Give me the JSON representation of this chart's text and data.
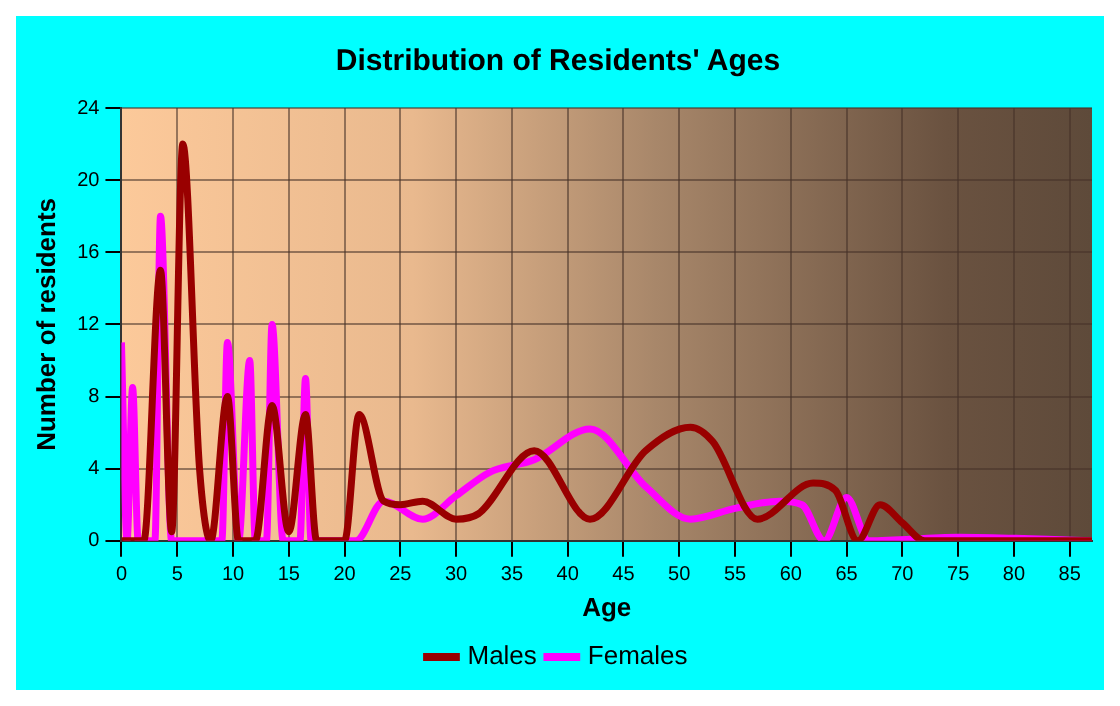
{
  "chart_data": {
    "type": "line",
    "title": "Distribution of Residents' Ages",
    "xlabel": "Age",
    "ylabel": "Number of residents",
    "xlim": [
      0,
      87
    ],
    "xticks": [
      0,
      5,
      10,
      15,
      20,
      25,
      30,
      35,
      40,
      45,
      50,
      55,
      60,
      65,
      70,
      75,
      80,
      85
    ],
    "ylim": [
      0,
      24
    ],
    "yticks": [
      0,
      4,
      8,
      12,
      16,
      20,
      24
    ],
    "grid": true,
    "legend": "bottom",
    "marker": "none",
    "series": [
      {
        "name": "Males",
        "color": "#990000",
        "x": [
          0,
          2,
          3.5,
          4.5,
          5.5,
          7,
          8,
          9.5,
          10.5,
          12,
          13.5,
          15,
          16.5,
          17.5,
          20,
          21.3,
          23.5,
          25,
          27,
          30,
          32,
          37,
          42,
          47,
          51,
          53,
          57,
          62,
          64,
          66,
          68,
          70,
          72,
          87
        ],
        "values": [
          0,
          0,
          15,
          0.5,
          22,
          4,
          0,
          8,
          0,
          0,
          7.5,
          0.5,
          7,
          0,
          0,
          7,
          2.2,
          2,
          2.2,
          1.2,
          1.5,
          5,
          1.2,
          5,
          6.3,
          5.5,
          1.2,
          3.2,
          2.8,
          0,
          2,
          1,
          0,
          0
        ]
      },
      {
        "name": "Females",
        "color": "#ff00ff",
        "x": [
          0,
          0.5,
          1,
          1.5,
          3,
          3.5,
          4.5,
          9,
          9.5,
          10.5,
          11.5,
          12,
          13,
          13.5,
          14.5,
          16,
          16.5,
          17,
          21,
          23.5,
          27,
          30,
          33,
          37,
          42,
          47,
          51,
          55,
          59,
          61,
          63,
          65,
          67,
          75,
          87
        ],
        "values": [
          11,
          0,
          8.5,
          0,
          0,
          18,
          0,
          0,
          11,
          0,
          10,
          0,
          0,
          12,
          0,
          0,
          9,
          0,
          0,
          2.2,
          1.2,
          2.5,
          3.8,
          4.5,
          6.2,
          3,
          1.2,
          1.8,
          2.2,
          2,
          0,
          2.4,
          0,
          0.2,
          0
        ]
      }
    ]
  }
}
